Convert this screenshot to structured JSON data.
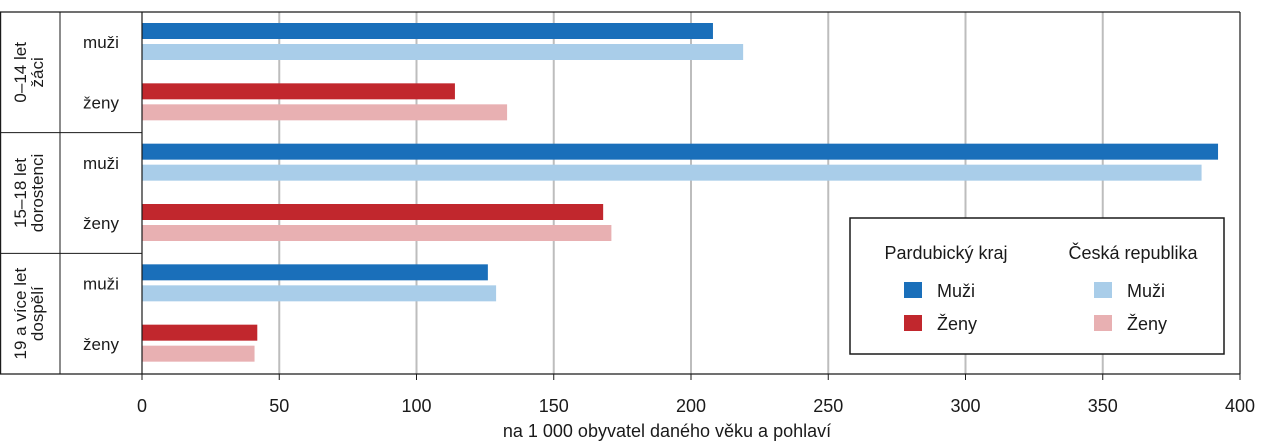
{
  "chart_data": {
    "type": "bar",
    "orientation": "horizontal",
    "xlabel": "na 1 000 obyvatel daného věku a pohlaví",
    "xlim": [
      0,
      400
    ],
    "xticks": [
      0,
      50,
      100,
      150,
      200,
      250,
      300,
      350,
      400
    ],
    "grid": "vertical",
    "groups": [
      {
        "label": [
          "0–14 let",
          "žáci"
        ],
        "rows": [
          {
            "label": "muži",
            "values": [
              208,
              219
            ]
          },
          {
            "label": "ženy",
            "values": [
              114,
              133
            ]
          }
        ]
      },
      {
        "label": [
          "15–18 let",
          "dorostenci"
        ],
        "rows": [
          {
            "label": "muži",
            "values": [
              392,
              386
            ]
          },
          {
            "label": "ženy",
            "values": [
              168,
              171
            ]
          }
        ]
      },
      {
        "label": [
          "19 a více let",
          "dospělí"
        ],
        "rows": [
          {
            "label": "muži",
            "values": [
              126,
              129
            ]
          },
          {
            "label": "ženy",
            "values": [
              42,
              41
            ]
          }
        ]
      }
    ],
    "legend": {
      "position": "bottom-right",
      "col1_title": "Pardubický kraj",
      "col2_title": "Česká republika",
      "entries": [
        {
          "label": "Muži",
          "color": "#1a6fba"
        },
        {
          "label": "Ženy",
          "color": "#c1272d"
        },
        {
          "label": "Muži",
          "color": "#a9cde9"
        },
        {
          "label": "Ženy",
          "color": "#e8b0b2"
        }
      ]
    },
    "colors": {
      "pk_muzi": "#1a6fba",
      "pk_zeny": "#c1272d",
      "cr_muzi": "#a9cde9",
      "cr_zeny": "#e8b0b2"
    }
  }
}
